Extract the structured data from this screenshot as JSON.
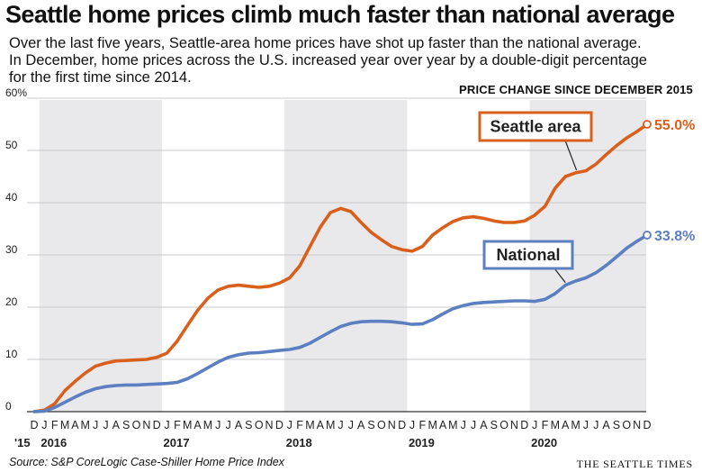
{
  "header": {
    "title": "Seattle home prices climb much faster than national average",
    "subtitle_lines": [
      "Over the last five years, Seattle-area home prices have shot up faster than the national average.",
      "In December, home prices across the U.S. increased year over year by a double-digit percentage",
      "for the first time since 2014."
    ]
  },
  "footer": {
    "source": "Source: S&P CoreLogic Case-Shiller Home Price Index",
    "credit": "THE SEATTLE TIMES"
  },
  "chart_data": {
    "type": "line",
    "title": "PRICE CHANGE SINCE DECEMBER 2015",
    "xlabel": "",
    "ylabel": "",
    "ylim": [
      0,
      60
    ],
    "yticks": [
      0,
      10,
      20,
      30,
      40,
      50,
      60
    ],
    "ytick_labels": [
      "0",
      "10",
      "20",
      "30",
      "40",
      "50",
      "60%"
    ],
    "month_letters": [
      "D",
      "J",
      "F",
      "M",
      "A",
      "M",
      "J",
      "J",
      "A",
      "S",
      "O",
      "N",
      "D",
      "J",
      "F",
      "M",
      "A",
      "M",
      "J",
      "J",
      "A",
      "S",
      "O",
      "N",
      "D",
      "J",
      "F",
      "M",
      "A",
      "M",
      "J",
      "J",
      "A",
      "S",
      "O",
      "N",
      "D",
      "J",
      "F",
      "M",
      "A",
      "M",
      "J",
      "J",
      "A",
      "S",
      "O",
      "N",
      "D",
      "J",
      "F",
      "M",
      "A",
      "M",
      "J",
      "J",
      "A",
      "S",
      "O",
      "N",
      "D"
    ],
    "year_labels": [
      {
        "label": "'15",
        "index": 0
      },
      {
        "label": "2016",
        "index": 1
      },
      {
        "label": "2017",
        "index": 13
      },
      {
        "label": "2018",
        "index": 25
      },
      {
        "label": "2019",
        "index": 37
      },
      {
        "label": "2020",
        "index": 49
      }
    ],
    "shaded_years": [
      2016,
      2018,
      2020
    ],
    "grid": true,
    "series": [
      {
        "name": "Seattle area",
        "color": "#d9601c",
        "end_label": "55.0%",
        "values": [
          0,
          0.3,
          1.5,
          4.0,
          5.8,
          7.4,
          8.7,
          9.3,
          9.7,
          9.8,
          9.9,
          10.0,
          10.4,
          11.2,
          13.5,
          16.5,
          19.4,
          21.7,
          23.3,
          24.0,
          24.2,
          24.0,
          23.8,
          24.0,
          24.6,
          25.6,
          27.9,
          31.6,
          35.3,
          38.1,
          38.9,
          38.3,
          36.2,
          34.3,
          32.9,
          31.6,
          31.0,
          30.7,
          31.6,
          33.8,
          35.2,
          36.4,
          37.1,
          37.3,
          37.0,
          36.5,
          36.2,
          36.2,
          36.5,
          37.6,
          39.3,
          42.8,
          45.0,
          45.7,
          46.1,
          47.4,
          49.2,
          50.9,
          52.4,
          53.6,
          55.0
        ]
      },
      {
        "name": "National",
        "color": "#5c7fbf",
        "end_label": "33.8%",
        "values": [
          0,
          0.1,
          0.8,
          1.8,
          2.8,
          3.7,
          4.4,
          4.8,
          5.0,
          5.1,
          5.1,
          5.2,
          5.3,
          5.4,
          5.6,
          6.3,
          7.3,
          8.4,
          9.5,
          10.4,
          10.9,
          11.2,
          11.3,
          11.5,
          11.7,
          11.9,
          12.3,
          13.1,
          14.2,
          15.3,
          16.3,
          16.9,
          17.2,
          17.3,
          17.3,
          17.2,
          17.0,
          16.7,
          16.8,
          17.6,
          18.7,
          19.7,
          20.3,
          20.7,
          20.9,
          21.0,
          21.1,
          21.2,
          21.2,
          21.1,
          21.5,
          22.6,
          24.2,
          25.0,
          25.6,
          26.6,
          28.0,
          29.6,
          31.3,
          32.6,
          33.8
        ]
      }
    ]
  }
}
